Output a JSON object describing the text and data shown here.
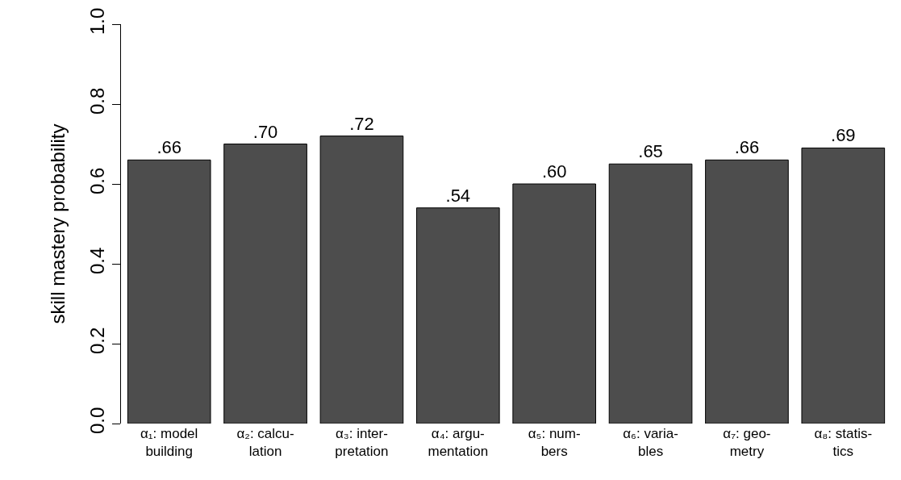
{
  "chart_data": {
    "type": "bar",
    "ylabel": "skill mastery probability",
    "categories": [
      "α₁: model\nbuilding",
      "α₂: calcu-\nlation",
      "α₃: inter-\npretation",
      "α₄: argu-\nmentation",
      "α₅: num-\nbers",
      "α₆: varia-\nbles",
      "α₇: geo-\nmetry",
      "α₈: statis-\ntics"
    ],
    "values": [
      0.66,
      0.7,
      0.72,
      0.54,
      0.6,
      0.65,
      0.66,
      0.69
    ],
    "value_labels": [
      ".66",
      ".70",
      ".72",
      ".54",
      ".60",
      ".65",
      ".66",
      ".69"
    ],
    "color": "#4d4d4d",
    "ylim": [
      0,
      1
    ],
    "yticks": [
      {
        "value": 0,
        "label": "0.0"
      },
      {
        "value": 0.2,
        "label": "0.2"
      },
      {
        "value": 0.4,
        "label": "0.4"
      },
      {
        "value": 0.6,
        "label": "0.6"
      },
      {
        "value": 0.8,
        "label": "0.8"
      },
      {
        "value": 1,
        "label": "1.0"
      }
    ],
    "grid": false
  }
}
